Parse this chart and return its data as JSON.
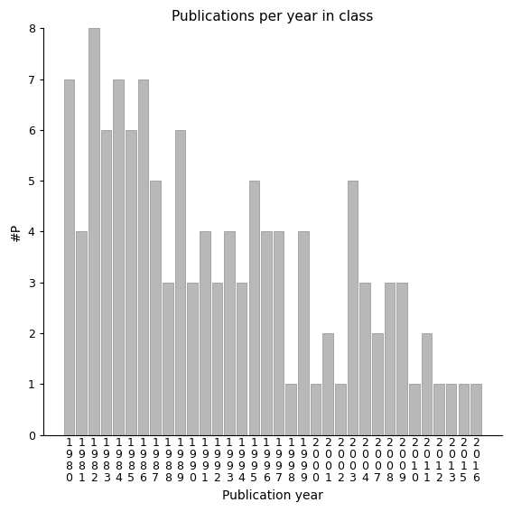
{
  "title": "Publications per year in class",
  "xlabel": "Publication year",
  "ylabel": "#P",
  "categories": [
    "1980",
    "1981",
    "1982",
    "1983",
    "1984",
    "1985",
    "1986",
    "1987",
    "1988",
    "1989",
    "1990",
    "1991",
    "1992",
    "1993",
    "1994",
    "1995",
    "1996",
    "1997",
    "1998",
    "1999",
    "2000",
    "2001",
    "2002",
    "2003",
    "2004",
    "2007",
    "2008",
    "2009",
    "2010",
    "2011",
    "2012",
    "2013",
    "2015",
    "2016"
  ],
  "values": [
    7,
    4,
    8,
    6,
    7,
    6,
    7,
    5,
    3,
    6,
    3,
    4,
    3,
    4,
    3,
    5,
    4,
    4,
    1,
    4,
    1,
    2,
    1,
    5,
    3,
    2,
    3,
    3,
    1,
    2,
    1,
    1,
    1,
    1
  ],
  "bar_color": "#b8b8b8",
  "bar_edge_color": "#909090",
  "ylim": [
    0,
    8
  ],
  "yticks": [
    0,
    1,
    2,
    3,
    4,
    5,
    6,
    7,
    8
  ],
  "title_fontsize": 11,
  "axis_label_fontsize": 10,
  "tick_fontsize": 9,
  "background_color": "#ffffff"
}
